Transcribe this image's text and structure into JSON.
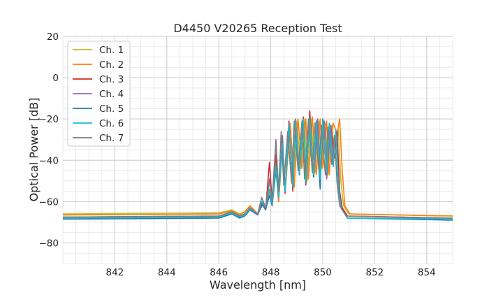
{
  "chart_data": {
    "type": "line",
    "title": "D4450 V20265 Reception Test",
    "xlabel": "Wavelength [nm]",
    "ylabel": "Optical Power [dB]",
    "xlim": [
      840.0,
      855.0
    ],
    "ylim": [
      -90,
      20
    ],
    "xticks": [
      842,
      844,
      846,
      848,
      850,
      852,
      854
    ],
    "yticks": [
      -80,
      -60,
      -40,
      -20,
      0,
      20
    ],
    "grid": "on (major and minor)",
    "legend_position": "top-left",
    "series": [
      {
        "name": "Ch. 1",
        "color": "#bcbd22",
        "x": [
          840.0,
          846.0,
          846.5,
          846.8,
          847.0,
          847.2,
          847.5,
          847.7,
          847.8,
          847.95,
          848.05,
          848.2,
          848.3,
          848.45,
          848.55,
          848.75,
          848.9,
          849.0,
          849.15,
          849.3,
          849.4,
          849.55,
          849.7,
          849.85,
          849.95,
          850.1,
          850.2,
          850.35,
          850.45,
          850.6,
          850.7,
          850.8,
          850.9,
          851.0,
          855.0
        ],
        "y": [
          -66,
          -65.5,
          -64,
          -66,
          -65,
          -62,
          -66,
          -60,
          -64,
          -54,
          -61,
          -42,
          -60,
          -31,
          -55,
          -22,
          -53,
          -21,
          -44,
          -20,
          -50,
          -20,
          -46,
          -21,
          -44,
          -22,
          -47,
          -23,
          -37,
          -25,
          -50,
          -62,
          -64,
          -66,
          -67
        ]
      },
      {
        "name": "Ch. 2",
        "color": "#ff7f0e",
        "x": [
          840.0,
          846.0,
          846.5,
          846.8,
          847.0,
          847.2,
          847.5,
          847.7,
          847.8,
          847.95,
          848.05,
          848.2,
          848.3,
          848.45,
          848.55,
          848.75,
          848.9,
          849.05,
          849.2,
          849.35,
          849.45,
          849.6,
          849.75,
          849.9,
          850.0,
          850.15,
          850.25,
          850.4,
          850.55,
          850.65,
          850.75,
          850.85,
          850.95,
          851.05,
          855.0
        ],
        "y": [
          -66.5,
          -66,
          -64.5,
          -66.5,
          -65,
          -62,
          -66,
          -60,
          -64,
          -55,
          -61,
          -44,
          -60,
          -33,
          -55,
          -23,
          -53,
          -20,
          -44,
          -20,
          -49,
          -19,
          -47,
          -20,
          -44,
          -21,
          -47,
          -22,
          -27,
          -20,
          -45,
          -62,
          -64,
          -66,
          -67
        ]
      },
      {
        "name": "Ch. 3",
        "color": "#d62728",
        "x": [
          840.0,
          846.0,
          846.5,
          846.8,
          847.0,
          847.2,
          847.5,
          847.7,
          847.8,
          847.95,
          848.05,
          848.2,
          848.3,
          848.45,
          848.55,
          848.7,
          848.85,
          848.95,
          849.1,
          849.25,
          849.35,
          849.5,
          849.65,
          849.8,
          849.9,
          850.05,
          850.15,
          850.3,
          850.45,
          850.55,
          850.65,
          850.75,
          850.85,
          850.95,
          855.0
        ],
        "y": [
          -67.5,
          -67,
          -65,
          -67,
          -66,
          -63,
          -66,
          -61,
          -64,
          -41,
          -60,
          -37,
          -58,
          -33,
          -56,
          -21,
          -55,
          -20,
          -45,
          -19,
          -52,
          -16,
          -48,
          -20,
          -46,
          -21,
          -49,
          -23,
          -39,
          -26,
          -55,
          -63,
          -65,
          -67,
          -68
        ]
      },
      {
        "name": "Ch. 4",
        "color": "#9467bd",
        "x": [
          840.0,
          846.0,
          846.5,
          846.8,
          847.0,
          847.2,
          847.5,
          847.65,
          847.8,
          847.95,
          848.05,
          848.2,
          848.3,
          848.45,
          848.55,
          848.7,
          848.85,
          848.95,
          849.1,
          849.25,
          849.35,
          849.5,
          849.65,
          849.8,
          849.9,
          850.05,
          850.15,
          850.3,
          850.4,
          850.5,
          850.6,
          850.7,
          850.85,
          850.95,
          855.0
        ],
        "y": [
          -68,
          -67.5,
          -65.5,
          -67.5,
          -66,
          -63,
          -66,
          -58,
          -63,
          -49,
          -60,
          -30,
          -57,
          -28,
          -54,
          -22,
          -52,
          -20,
          -46,
          -20,
          -50,
          -19,
          -48,
          -20,
          -46,
          -21,
          -49,
          -23,
          -41,
          -27,
          -53,
          -63,
          -66,
          -68,
          -68
        ]
      },
      {
        "name": "Ch. 5",
        "color": "#1f77b4",
        "x": [
          840.0,
          846.0,
          846.5,
          846.8,
          847.0,
          847.2,
          847.5,
          847.65,
          847.8,
          847.95,
          848.05,
          848.2,
          848.3,
          848.45,
          848.55,
          848.7,
          848.85,
          848.95,
          849.1,
          849.25,
          849.35,
          849.5,
          849.65,
          849.75,
          849.9,
          850.0,
          850.15,
          850.25,
          850.4,
          850.5,
          850.6,
          850.7,
          850.85,
          850.95,
          855.0
        ],
        "y": [
          -68.5,
          -68,
          -66,
          -68,
          -67,
          -64,
          -66.5,
          -61,
          -64,
          -57,
          -62,
          -45,
          -58,
          -31,
          -55,
          -24,
          -53,
          -22,
          -47,
          -20,
          -51,
          -20,
          -48,
          -21,
          -54,
          -20,
          -46,
          -23,
          -43,
          -27,
          -52,
          -63,
          -66,
          -68,
          -69
        ]
      },
      {
        "name": "Ch. 6",
        "color": "#17becf",
        "x": [
          840.0,
          846.0,
          846.5,
          846.8,
          847.0,
          847.2,
          847.5,
          847.65,
          847.8,
          847.95,
          848.05,
          848.2,
          848.3,
          848.45,
          848.55,
          848.7,
          848.85,
          848.95,
          849.1,
          849.25,
          849.35,
          849.5,
          849.65,
          849.75,
          849.9,
          850.0,
          850.15,
          850.25,
          850.4,
          850.5,
          850.6,
          850.7,
          850.85,
          850.95,
          855.0
        ],
        "y": [
          -68,
          -67.5,
          -65.5,
          -67.5,
          -66.5,
          -63.5,
          -66,
          -60,
          -63,
          -54,
          -61,
          -43,
          -58,
          -32,
          -55,
          -23,
          -53,
          -21,
          -46,
          -20,
          -50,
          -20,
          -47,
          -21,
          -49,
          -21,
          -46,
          -22,
          -43,
          -25,
          -52,
          -63,
          -66,
          -68,
          -68.5
        ]
      },
      {
        "name": "Ch. 7",
        "color": "#7f7f7f",
        "x": [
          840.0,
          846.0,
          846.5,
          846.8,
          847.0,
          847.2,
          847.5,
          847.65,
          847.8,
          847.95,
          848.05,
          848.2,
          848.3,
          848.4,
          848.5,
          848.65,
          848.8,
          848.9,
          849.05,
          849.2,
          849.3,
          849.45,
          849.6,
          849.7,
          849.85,
          849.95,
          850.1,
          850.2,
          850.35,
          850.45,
          850.55,
          850.65,
          850.8,
          850.9,
          855.0
        ],
        "y": [
          -67.5,
          -67,
          -65,
          -67,
          -66,
          -63,
          -66,
          -58,
          -63,
          -50,
          -60,
          -31,
          -55,
          -26,
          -52,
          -26,
          -51,
          -21,
          -45,
          -21,
          -49,
          -20,
          -46,
          -22,
          -45,
          -23,
          -47,
          -24,
          -42,
          -28,
          -51,
          -62,
          -65,
          -67,
          -68
        ]
      }
    ]
  }
}
